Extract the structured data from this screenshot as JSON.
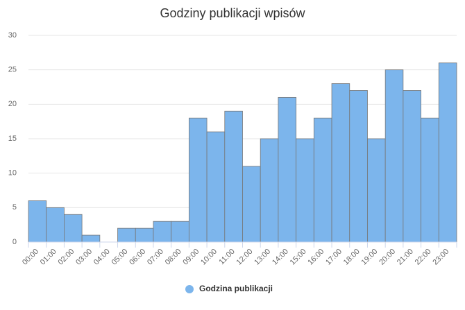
{
  "chart_data": {
    "type": "bar",
    "title": "Godziny publikacji wpisów",
    "categories": [
      "00:00",
      "01:00",
      "02:00",
      "03:00",
      "04:00",
      "05:00",
      "06:00",
      "07:00",
      "08:00",
      "09:00",
      "10:00",
      "11:00",
      "12:00",
      "13:00",
      "14:00",
      "15:00",
      "16:00",
      "17:00",
      "18:00",
      "19:00",
      "20:00",
      "21:00",
      "22:00",
      "23:00"
    ],
    "series": [
      {
        "name": "Godzina publikacji",
        "color": "#7cb5ec",
        "values": [
          6,
          5,
          4,
          1,
          0,
          2,
          2,
          3,
          3,
          18,
          16,
          19,
          11,
          15,
          21,
          15,
          18,
          23,
          22,
          15,
          25,
          22,
          18,
          26
        ]
      }
    ],
    "ylim": [
      0,
      30
    ],
    "yticks": [
      0,
      5,
      10,
      15,
      20,
      25,
      30
    ],
    "grid": true,
    "legend": "bottom"
  }
}
